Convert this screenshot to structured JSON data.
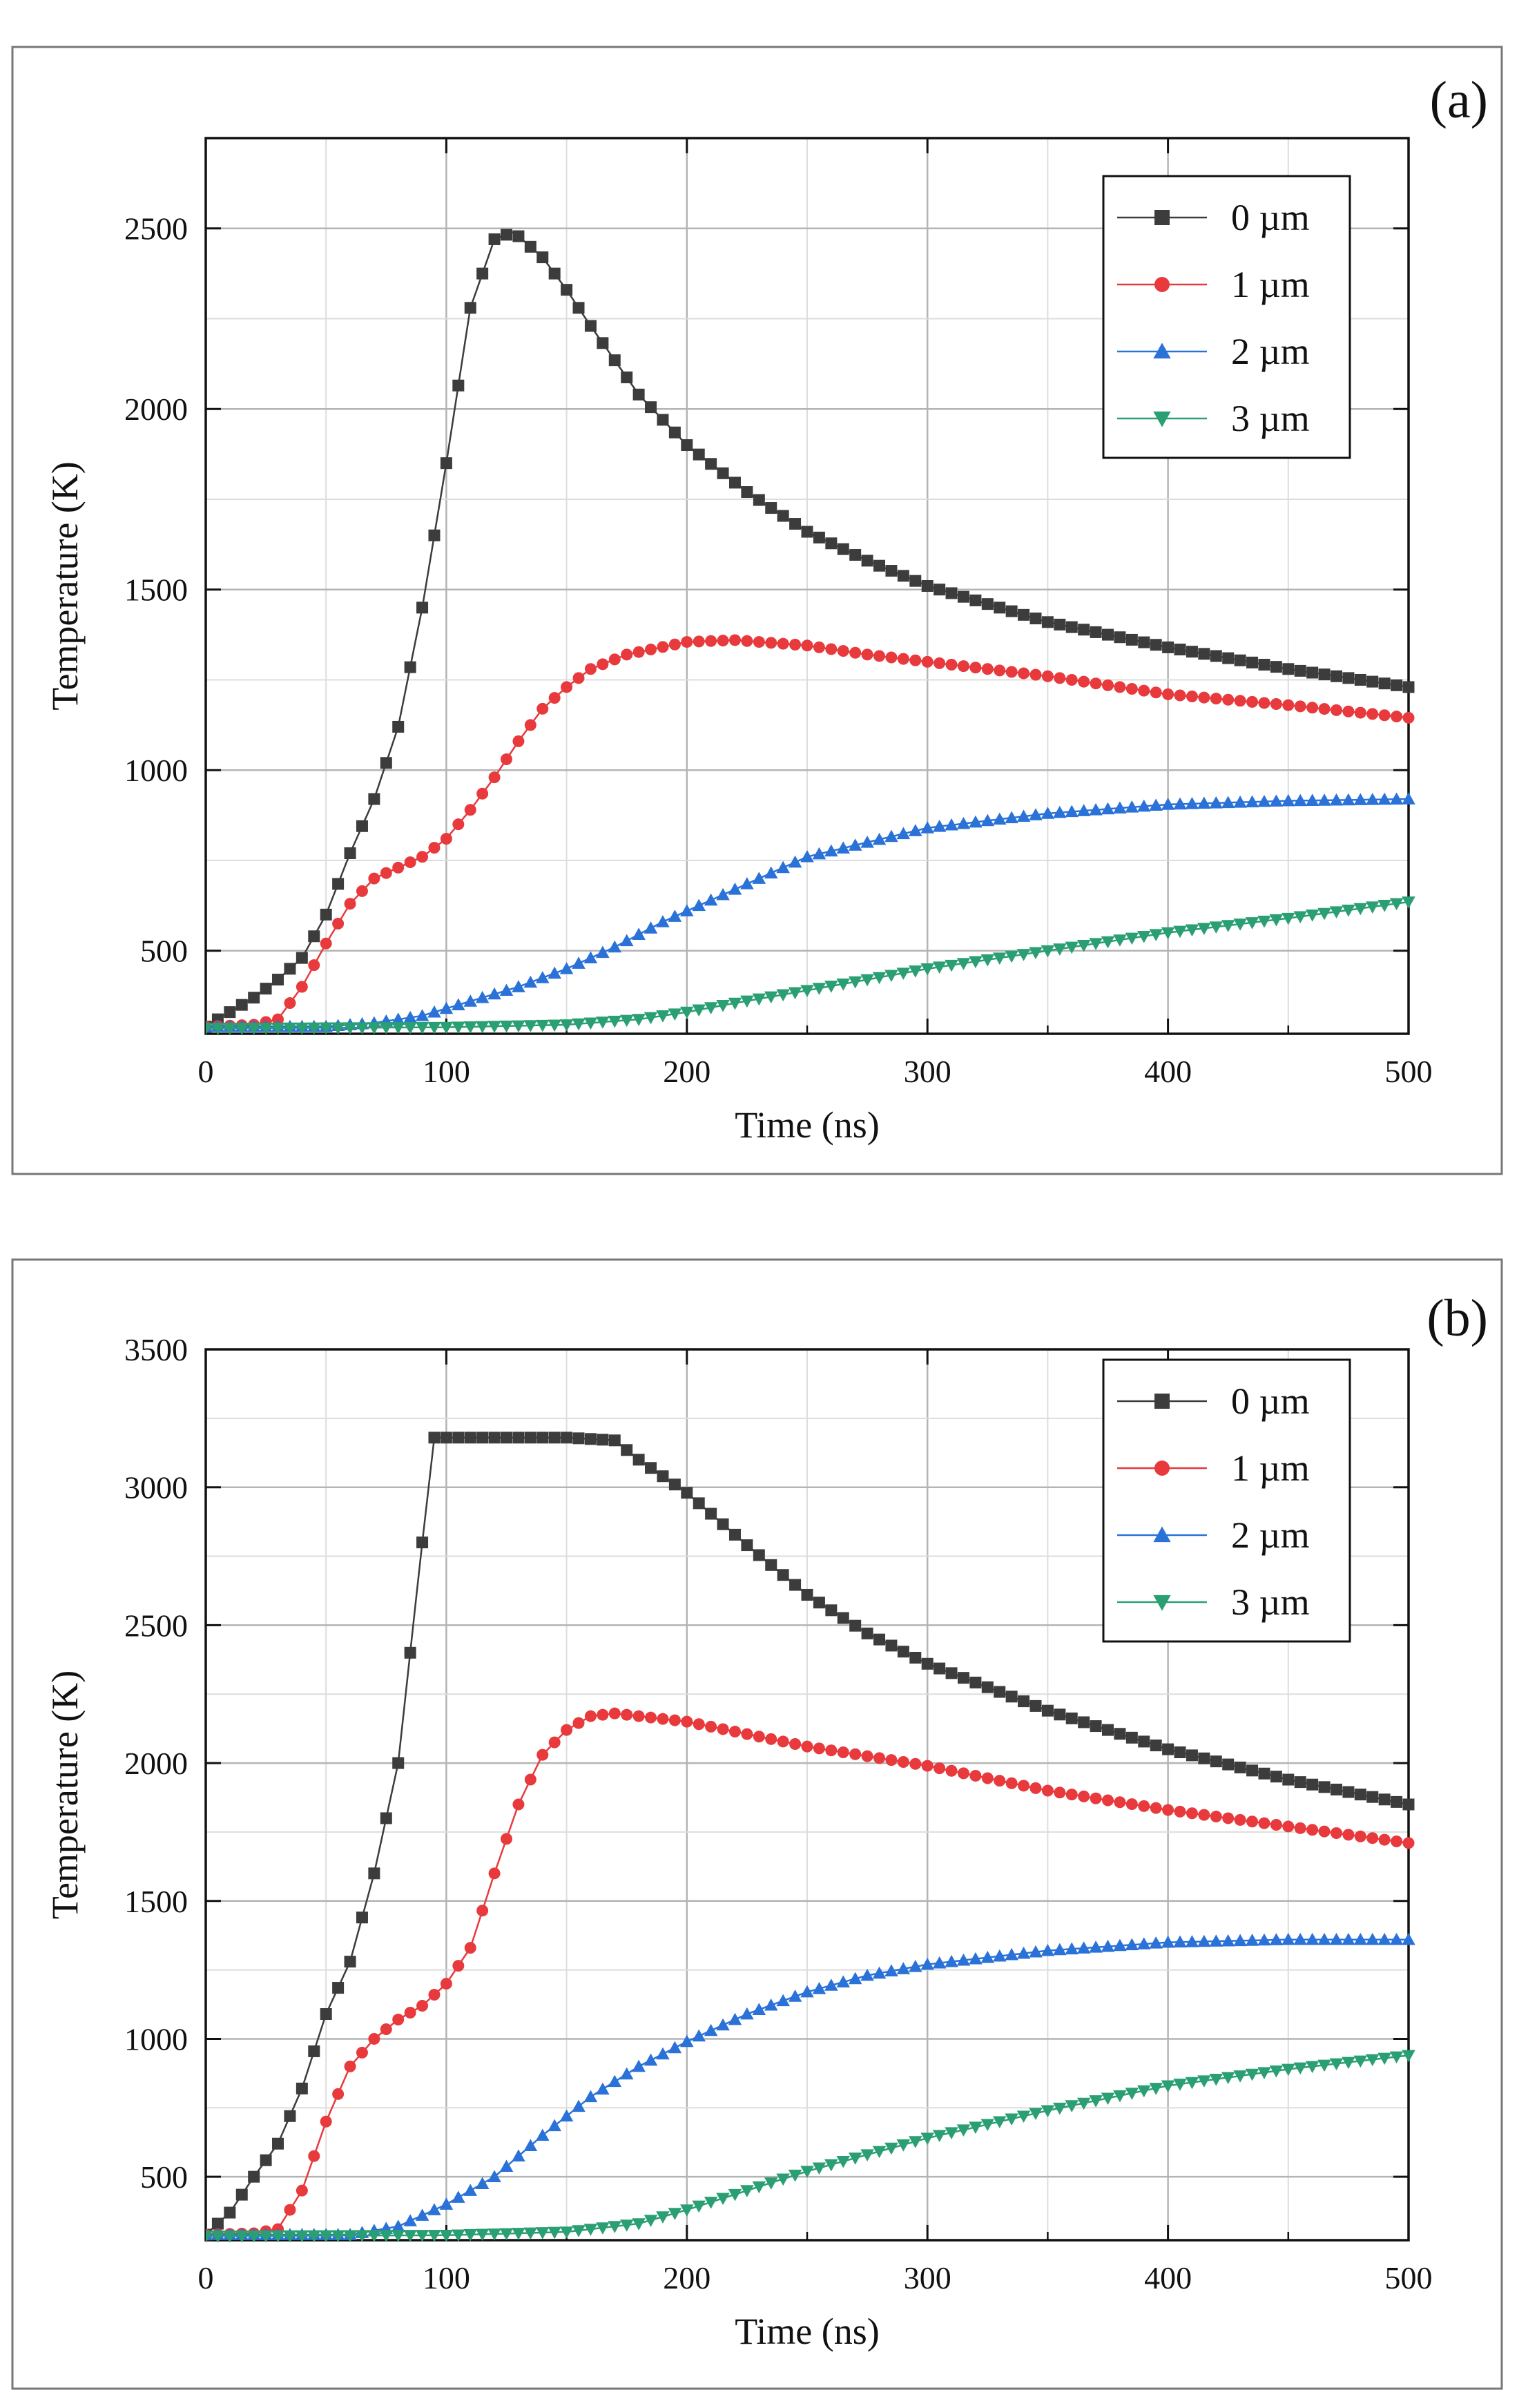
{
  "chart_data": [
    {
      "type": "line",
      "panel_label": "(a)",
      "xlabel": "Time (ns)",
      "ylabel": "Temperature (K)",
      "xlim": [
        0,
        500
      ],
      "ylim": [
        270,
        2750
      ],
      "xticks": [
        0,
        100,
        200,
        300,
        400,
        500
      ],
      "yticks": [
        500,
        1000,
        1500,
        2000,
        2500
      ],
      "grid": true,
      "legend_position": "top-right",
      "series": [
        {
          "name": "0 µm",
          "color": "#3c3c3c",
          "marker": "square",
          "points": [
            [
              0,
              290
            ],
            [
              10,
              330
            ],
            [
              20,
              370
            ],
            [
              30,
              420
            ],
            [
              40,
              480
            ],
            [
              50,
              600
            ],
            [
              60,
              770
            ],
            [
              70,
              920
            ],
            [
              80,
              1120
            ],
            [
              90,
              1450
            ],
            [
              100,
              1850
            ],
            [
              110,
              2280
            ],
            [
              120,
              2470
            ],
            [
              128,
              2490
            ],
            [
              140,
              2420
            ],
            [
              150,
              2330
            ],
            [
              160,
              2230
            ],
            [
              180,
              2040
            ],
            [
              200,
              1900
            ],
            [
              225,
              1770
            ],
            [
              250,
              1660
            ],
            [
              275,
              1580
            ],
            [
              300,
              1510
            ],
            [
              350,
              1410
            ],
            [
              400,
              1340
            ],
            [
              450,
              1280
            ],
            [
              500,
              1230
            ]
          ]
        },
        {
          "name": "1 µm",
          "color": "#e8393c",
          "marker": "circle",
          "points": [
            [
              0,
              290
            ],
            [
              20,
              295
            ],
            [
              30,
              310
            ],
            [
              40,
              400
            ],
            [
              50,
              520
            ],
            [
              60,
              630
            ],
            [
              70,
              700
            ],
            [
              80,
              730
            ],
            [
              90,
              760
            ],
            [
              100,
              810
            ],
            [
              110,
              890
            ],
            [
              120,
              980
            ],
            [
              130,
              1080
            ],
            [
              140,
              1170
            ],
            [
              150,
              1230
            ],
            [
              160,
              1280
            ],
            [
              175,
              1320
            ],
            [
              200,
              1355
            ],
            [
              220,
              1360
            ],
            [
              250,
              1345
            ],
            [
              275,
              1320
            ],
            [
              300,
              1300
            ],
            [
              350,
              1260
            ],
            [
              400,
              1210
            ],
            [
              450,
              1180
            ],
            [
              500,
              1145
            ]
          ]
        },
        {
          "name": "2 µm",
          "color": "#2a72d8",
          "marker": "triangle-up",
          "points": [
            [
              0,
              290
            ],
            [
              50,
              290
            ],
            [
              70,
              300
            ],
            [
              90,
              320
            ],
            [
              110,
              360
            ],
            [
              130,
              400
            ],
            [
              150,
              450
            ],
            [
              170,
              510
            ],
            [
              190,
              580
            ],
            [
              210,
              640
            ],
            [
              230,
              700
            ],
            [
              250,
              760
            ],
            [
              275,
              800
            ],
            [
              300,
              840
            ],
            [
              350,
              880
            ],
            [
              400,
              905
            ],
            [
              450,
              915
            ],
            [
              500,
              920
            ]
          ]
        },
        {
          "name": "3 µm",
          "color": "#2a9f73",
          "marker": "triangle-down",
          "points": [
            [
              0,
              285
            ],
            [
              100,
              288
            ],
            [
              150,
              295
            ],
            [
              180,
              310
            ],
            [
              200,
              330
            ],
            [
              220,
              355
            ],
            [
              250,
              390
            ],
            [
              275,
              420
            ],
            [
              300,
              450
            ],
            [
              350,
              500
            ],
            [
              400,
              550
            ],
            [
              450,
              590
            ],
            [
              500,
              635
            ]
          ]
        }
      ]
    },
    {
      "type": "line",
      "panel_label": "(b)",
      "xlabel": "Time (ns)",
      "ylabel": "Temperature (K)",
      "xlim": [
        0,
        500
      ],
      "ylim": [
        270,
        3500
      ],
      "xticks": [
        0,
        100,
        200,
        300,
        400,
        500
      ],
      "yticks": [
        500,
        1000,
        1500,
        2000,
        2500,
        3000,
        3500
      ],
      "grid": true,
      "legend_position": "top-right",
      "series": [
        {
          "name": "0 µm",
          "color": "#3c3c3c",
          "marker": "square",
          "points": [
            [
              0,
              290
            ],
            [
              10,
              370
            ],
            [
              20,
              500
            ],
            [
              30,
              620
            ],
            [
              40,
              820
            ],
            [
              50,
              1090
            ],
            [
              60,
              1280
            ],
            [
              70,
              1600
            ],
            [
              80,
              2000
            ],
            [
              90,
              2800
            ],
            [
              95,
              3180
            ],
            [
              100,
              3180
            ],
            [
              120,
              3180
            ],
            [
              150,
              3180
            ],
            [
              170,
              3170
            ],
            [
              180,
              3100
            ],
            [
              200,
              2980
            ],
            [
              225,
              2790
            ],
            [
              250,
              2610
            ],
            [
              275,
              2470
            ],
            [
              300,
              2360
            ],
            [
              350,
              2190
            ],
            [
              400,
              2050
            ],
            [
              450,
              1940
            ],
            [
              500,
              1850
            ]
          ]
        },
        {
          "name": "1 µm",
          "color": "#e8393c",
          "marker": "circle",
          "points": [
            [
              0,
              290
            ],
            [
              20,
              295
            ],
            [
              30,
              310
            ],
            [
              40,
              450
            ],
            [
              50,
              700
            ],
            [
              60,
              900
            ],
            [
              70,
              1000
            ],
            [
              80,
              1070
            ],
            [
              90,
              1120
            ],
            [
              100,
              1200
            ],
            [
              110,
              1330
            ],
            [
              120,
              1600
            ],
            [
              130,
              1850
            ],
            [
              140,
              2030
            ],
            [
              150,
              2120
            ],
            [
              160,
              2170
            ],
            [
              170,
              2180
            ],
            [
              200,
              2150
            ],
            [
              250,
              2060
            ],
            [
              300,
              1990
            ],
            [
              350,
              1900
            ],
            [
              400,
              1830
            ],
            [
              450,
              1770
            ],
            [
              500,
              1710
            ]
          ]
        },
        {
          "name": "2 µm",
          "color": "#2a72d8",
          "marker": "triangle-up",
          "points": [
            [
              0,
              290
            ],
            [
              60,
              290
            ],
            [
              80,
              320
            ],
            [
              100,
              400
            ],
            [
              120,
              500
            ],
            [
              140,
              650
            ],
            [
              160,
              790
            ],
            [
              180,
              900
            ],
            [
              200,
              990
            ],
            [
              225,
              1090
            ],
            [
              250,
              1170
            ],
            [
              275,
              1230
            ],
            [
              300,
              1270
            ],
            [
              350,
              1320
            ],
            [
              400,
              1350
            ],
            [
              450,
              1360
            ],
            [
              500,
              1360
            ]
          ]
        },
        {
          "name": "3 µm",
          "color": "#2a9f73",
          "marker": "triangle-down",
          "points": [
            [
              0,
              285
            ],
            [
              100,
              288
            ],
            [
              150,
              300
            ],
            [
              180,
              330
            ],
            [
              200,
              380
            ],
            [
              225,
              450
            ],
            [
              250,
              520
            ],
            [
              275,
              580
            ],
            [
              300,
              640
            ],
            [
              350,
              740
            ],
            [
              400,
              830
            ],
            [
              450,
              890
            ],
            [
              500,
              940
            ]
          ]
        }
      ]
    }
  ]
}
